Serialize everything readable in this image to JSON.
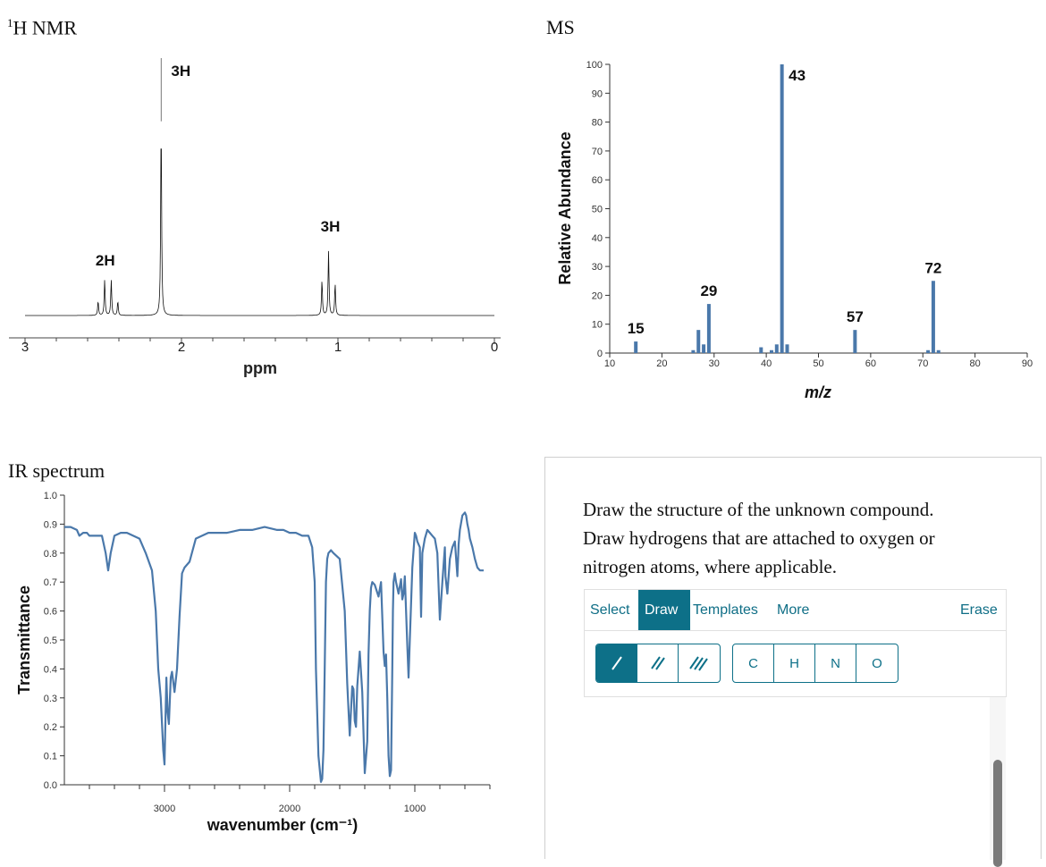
{
  "nmr": {
    "title_sup": "1",
    "title": "H NMR",
    "xlabel": "ppm",
    "ticks": [
      "3",
      "2",
      "1",
      "0"
    ]
  },
  "ms_title": "MS",
  "ir_title": "IR spectrum",
  "panel": {
    "instructions": [
      "Draw the structure of the unknown compound.",
      "Draw hydrogens that are attached to oxygen or",
      "nitrogen atoms, where applicable."
    ],
    "tabs": [
      "Select",
      "Draw",
      "Templates",
      "More"
    ],
    "active_tab": "Draw",
    "erase_label": "Erase",
    "bond_tools": [
      "single-bond-icon",
      "double-bond-icon",
      "triple-bond-icon"
    ],
    "atoms": [
      "C",
      "H",
      "N",
      "O"
    ],
    "accent_color": "#0d7088"
  },
  "chart_data": [
    {
      "type": "line",
      "name": "nmr",
      "xlabel": "ppm",
      "xlim": [
        3,
        0
      ],
      "x_reversed": true,
      "ticks": [
        3,
        2,
        1,
        0
      ],
      "peaks": [
        {
          "ppm": 2.47,
          "height": 0.15,
          "multiplicity": "quartet",
          "label": "2H"
        },
        {
          "ppm": 2.13,
          "height": 0.82,
          "multiplicity": "singlet",
          "label": "3H"
        },
        {
          "ppm": 1.06,
          "height": 0.27,
          "multiplicity": "triplet",
          "label": "3H"
        }
      ]
    },
    {
      "type": "bar",
      "name": "ms",
      "xlabel": "m/z",
      "ylabel": "Relative Abundance",
      "xlim": [
        10,
        90
      ],
      "ylim": [
        0,
        100
      ],
      "xticks": [
        10,
        20,
        30,
        40,
        50,
        60,
        70,
        80,
        90
      ],
      "yticks": [
        0,
        10,
        20,
        30,
        40,
        50,
        60,
        70,
        80,
        90,
        100
      ],
      "x": [
        15,
        26,
        27,
        28,
        29,
        39,
        41,
        42,
        43,
        44,
        57,
        71,
        72,
        73
      ],
      "values": [
        4,
        1,
        8,
        3,
        17,
        2,
        1,
        3,
        100,
        3,
        8,
        1,
        25,
        1
      ],
      "labels": [
        {
          "x": 15,
          "text": "15"
        },
        {
          "x": 29,
          "text": "29"
        },
        {
          "x": 43,
          "text": "43"
        },
        {
          "x": 57,
          "text": "57"
        },
        {
          "x": 72,
          "text": "72"
        }
      ],
      "color": "#4a78aa"
    },
    {
      "type": "line",
      "name": "ir",
      "xlabel": "wavenumber (cm⁻¹)",
      "ylabel": "Transmittance",
      "xlim": [
        3800,
        400
      ],
      "ylim": [
        0,
        1
      ],
      "xticks": [
        3000,
        2000,
        1000
      ],
      "yticks": [
        0.0,
        0.1,
        0.2,
        0.3,
        0.4,
        0.5,
        0.6,
        0.7,
        0.8,
        0.9,
        1.0
      ],
      "color": "#4a78aa",
      "series": [
        {
          "x": [
            3800,
            3750,
            3700,
            3680,
            3650,
            3620,
            3600,
            3560,
            3500,
            3470,
            3450,
            3430,
            3400,
            3350,
            3300,
            3250,
            3200,
            3150,
            3100,
            3070,
            3050,
            3030,
            3010,
            3000,
            2985,
            2975,
            2965,
            2950,
            2940,
            2920,
            2900,
            2880,
            2860,
            2840,
            2800,
            2750,
            2700,
            2650,
            2600,
            2500,
            2400,
            2300,
            2200,
            2100,
            2050,
            2000,
            1950,
            1900,
            1850,
            1820,
            1800,
            1790,
            1770,
            1750,
            1740,
            1730,
            1720,
            1710,
            1700,
            1690,
            1670,
            1650,
            1600,
            1560,
            1540,
            1520,
            1500,
            1490,
            1480,
            1470,
            1460,
            1440,
            1420,
            1400,
            1380,
            1370,
            1360,
            1350,
            1340,
            1320,
            1290,
            1270,
            1260,
            1250,
            1240,
            1230,
            1220,
            1210,
            1200,
            1190,
            1180,
            1175,
            1170,
            1160,
            1150,
            1130,
            1110,
            1100,
            1090,
            1080,
            1070,
            1060,
            1050,
            1040,
            1020,
            1000,
            990,
            980,
            970,
            960,
            950,
            940,
            920,
            900,
            880,
            860,
            840,
            820,
            800,
            780,
            765,
            760,
            755,
            740,
            720,
            700,
            680,
            660,
            650,
            640,
            620,
            600,
            590,
            580,
            570,
            560,
            540,
            520,
            500,
            480,
            460,
            450
          ],
          "y": [
            0.89,
            0.89,
            0.88,
            0.86,
            0.87,
            0.87,
            0.86,
            0.86,
            0.86,
            0.8,
            0.74,
            0.8,
            0.86,
            0.87,
            0.87,
            0.86,
            0.85,
            0.8,
            0.74,
            0.6,
            0.4,
            0.3,
            0.12,
            0.07,
            0.37,
            0.25,
            0.21,
            0.37,
            0.39,
            0.32,
            0.4,
            0.58,
            0.73,
            0.75,
            0.77,
            0.85,
            0.86,
            0.87,
            0.87,
            0.87,
            0.88,
            0.88,
            0.89,
            0.88,
            0.88,
            0.87,
            0.87,
            0.86,
            0.86,
            0.82,
            0.7,
            0.4,
            0.1,
            0.01,
            0.02,
            0.12,
            0.4,
            0.7,
            0.78,
            0.8,
            0.81,
            0.8,
            0.78,
            0.6,
            0.35,
            0.17,
            0.34,
            0.33,
            0.22,
            0.2,
            0.34,
            0.46,
            0.32,
            0.04,
            0.15,
            0.45,
            0.6,
            0.68,
            0.7,
            0.69,
            0.65,
            0.7,
            0.58,
            0.46,
            0.41,
            0.45,
            0.3,
            0.1,
            0.03,
            0.05,
            0.4,
            0.6,
            0.7,
            0.73,
            0.7,
            0.66,
            0.71,
            0.64,
            0.66,
            0.72,
            0.6,
            0.48,
            0.37,
            0.5,
            0.75,
            0.87,
            0.86,
            0.84,
            0.83,
            0.82,
            0.58,
            0.8,
            0.85,
            0.88,
            0.87,
            0.86,
            0.85,
            0.8,
            0.57,
            0.7,
            0.79,
            0.82,
            0.72,
            0.66,
            0.78,
            0.82,
            0.84,
            0.72,
            0.83,
            0.88,
            0.93,
            0.94,
            0.93,
            0.9,
            0.88,
            0.85,
            0.82,
            0.78,
            0.75,
            0.74,
            0.74,
            0.74
          ]
        }
      ]
    }
  ]
}
